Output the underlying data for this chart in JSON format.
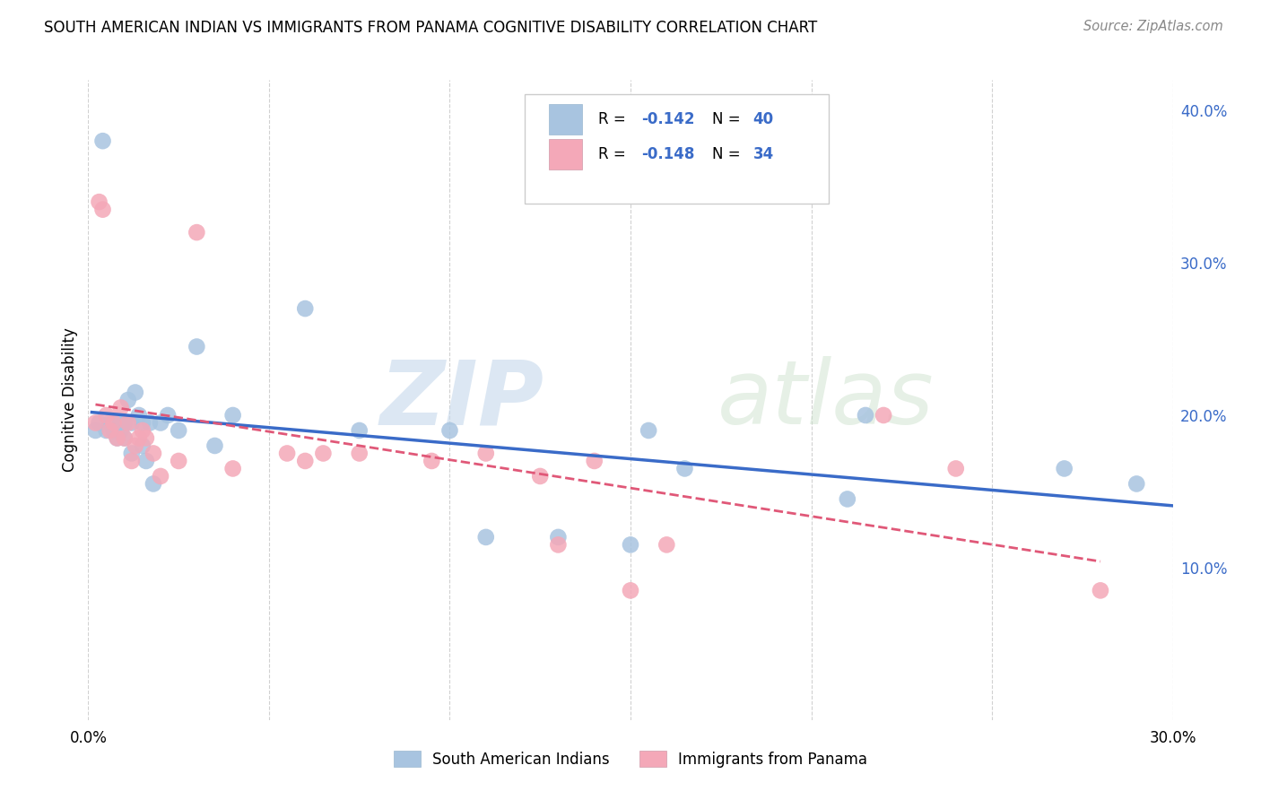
{
  "title": "SOUTH AMERICAN INDIAN VS IMMIGRANTS FROM PANAMA COGNITIVE DISABILITY CORRELATION CHART",
  "source": "Source: ZipAtlas.com",
  "ylabel": "Cognitive Disability",
  "xlabel_label_blue": "South American Indians",
  "xlabel_label_pink": "Immigrants from Panama",
  "legend_blue_r": "-0.142",
  "legend_blue_n": "40",
  "legend_pink_r": "-0.148",
  "legend_pink_n": "34",
  "xlim": [
    0.0,
    0.3
  ],
  "ylim": [
    0.0,
    0.42
  ],
  "yticks": [
    0.0,
    0.1,
    0.2,
    0.3,
    0.4
  ],
  "blue_color": "#a8c4e0",
  "pink_color": "#f4a8b8",
  "blue_line_color": "#3a6bc8",
  "pink_line_color": "#e05878",
  "watermark_zip": "ZIP",
  "watermark_atlas": "atlas",
  "blue_x": [
    0.002,
    0.003,
    0.004,
    0.005,
    0.006,
    0.007,
    0.007,
    0.008,
    0.009,
    0.009,
    0.01,
    0.01,
    0.011,
    0.012,
    0.012,
    0.013,
    0.014,
    0.015,
    0.015,
    0.016,
    0.017,
    0.018,
    0.02,
    0.022,
    0.025,
    0.03,
    0.035,
    0.04,
    0.06,
    0.075,
    0.1,
    0.11,
    0.13,
    0.15,
    0.155,
    0.165,
    0.21,
    0.215,
    0.27,
    0.29
  ],
  "blue_y": [
    0.19,
    0.195,
    0.38,
    0.19,
    0.195,
    0.19,
    0.195,
    0.185,
    0.19,
    0.195,
    0.195,
    0.185,
    0.21,
    0.175,
    0.195,
    0.215,
    0.2,
    0.18,
    0.195,
    0.17,
    0.195,
    0.155,
    0.195,
    0.2,
    0.19,
    0.245,
    0.18,
    0.2,
    0.27,
    0.19,
    0.19,
    0.12,
    0.12,
    0.115,
    0.19,
    0.165,
    0.145,
    0.2,
    0.165,
    0.155
  ],
  "pink_x": [
    0.002,
    0.003,
    0.004,
    0.005,
    0.006,
    0.007,
    0.008,
    0.009,
    0.01,
    0.011,
    0.012,
    0.013,
    0.014,
    0.015,
    0.016,
    0.018,
    0.02,
    0.025,
    0.03,
    0.04,
    0.055,
    0.06,
    0.065,
    0.075,
    0.095,
    0.11,
    0.125,
    0.13,
    0.14,
    0.15,
    0.16,
    0.22,
    0.24,
    0.28
  ],
  "pink_y": [
    0.195,
    0.34,
    0.335,
    0.2,
    0.19,
    0.195,
    0.185,
    0.205,
    0.185,
    0.195,
    0.17,
    0.18,
    0.185,
    0.19,
    0.185,
    0.175,
    0.16,
    0.17,
    0.32,
    0.165,
    0.175,
    0.17,
    0.175,
    0.175,
    0.17,
    0.175,
    0.16,
    0.115,
    0.17,
    0.085,
    0.115,
    0.2,
    0.165,
    0.085
  ]
}
